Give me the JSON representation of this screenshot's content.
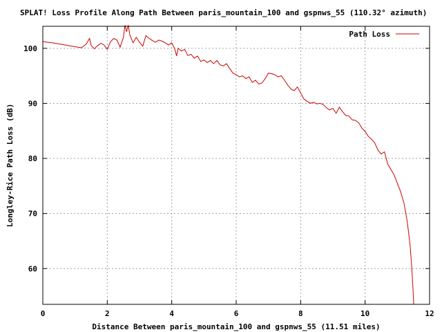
{
  "chart_data": {
    "type": "line",
    "title": "SPLAT! Loss Profile Along Path Between paris_mountain_100 and gspnws_55 (110.32° azimuth)",
    "xlabel": "Distance Between paris_mountain_100 and gspnws_55 (11.51 miles)",
    "ylabel": "Longley-Rice Path Loss (dB)",
    "xlim": [
      0,
      12
    ],
    "ylim": [
      53.5,
      104
    ],
    "xticks": [
      "0",
      "2",
      "4",
      "6",
      "8",
      "10",
      "12"
    ],
    "yticks": [
      "60",
      "70",
      "80",
      "90",
      "100"
    ],
    "xtick_values": [
      0,
      2,
      4,
      6,
      8,
      10,
      12
    ],
    "ytick_values": [
      60,
      70,
      80,
      90,
      100
    ],
    "grid": true,
    "legend_position": "top-right",
    "series": [
      {
        "name": "Path Loss",
        "color": "#cc0000",
        "x": [
          0,
          0.3,
          0.6,
          0.9,
          1.2,
          1.35,
          1.45,
          1.5,
          1.6,
          1.7,
          1.8,
          1.9,
          2.0,
          2.1,
          2.2,
          2.3,
          2.4,
          2.5,
          2.55,
          2.6,
          2.65,
          2.7,
          2.8,
          2.9,
          3.0,
          3.1,
          3.2,
          3.3,
          3.4,
          3.5,
          3.6,
          3.7,
          3.8,
          3.9,
          4.0,
          4.1,
          4.15,
          4.2,
          4.3,
          4.4,
          4.5,
          4.6,
          4.7,
          4.8,
          4.9,
          5.0,
          5.1,
          5.2,
          5.3,
          5.4,
          5.5,
          5.6,
          5.7,
          5.8,
          5.9,
          6.0,
          6.1,
          6.2,
          6.3,
          6.4,
          6.5,
          6.6,
          6.7,
          6.8,
          6.9,
          7.0,
          7.1,
          7.2,
          7.3,
          7.4,
          7.5,
          7.6,
          7.7,
          7.8,
          7.9,
          8.0,
          8.1,
          8.2,
          8.3,
          8.4,
          8.5,
          8.6,
          8.7,
          8.8,
          8.9,
          9.0,
          9.1,
          9.2,
          9.3,
          9.4,
          9.5,
          9.6,
          9.7,
          9.8,
          9.9,
          10.0,
          10.1,
          10.2,
          10.3,
          10.4,
          10.5,
          10.6,
          10.7,
          10.8,
          10.9,
          11.0,
          11.1,
          11.2,
          11.25,
          11.3,
          11.35,
          11.4,
          11.45,
          11.48,
          11.51
        ],
        "values": [
          101.2,
          101.0,
          100.7,
          100.4,
          100.1,
          100.8,
          101.8,
          100.5,
          99.9,
          100.5,
          100.9,
          100.6,
          99.8,
          101.2,
          101.8,
          101.5,
          100.2,
          102.0,
          104.2,
          103.0,
          104.2,
          102.4,
          101.0,
          102.0,
          101.1,
          100.4,
          102.3,
          101.8,
          101.4,
          101.1,
          101.5,
          101.3,
          101.0,
          100.6,
          101.0,
          99.8,
          98.6,
          100.0,
          99.5,
          99.8,
          98.7,
          98.9,
          98.2,
          98.6,
          97.6,
          97.9,
          97.4,
          97.8,
          97.2,
          97.8,
          97.0,
          96.8,
          97.2,
          96.3,
          95.5,
          95.2,
          94.8,
          95.0,
          94.5,
          94.8,
          93.8,
          94.2,
          93.5,
          93.7,
          94.5,
          95.5,
          95.4,
          95.2,
          94.8,
          95.0,
          94.2,
          93.3,
          92.6,
          92.3,
          93.0,
          91.9,
          90.8,
          90.4,
          90.0,
          90.2,
          89.9,
          90.0,
          89.8,
          89.2,
          88.8,
          89.1,
          88.2,
          89.3,
          88.5,
          87.8,
          87.7,
          87.0,
          86.9,
          86.5,
          85.5,
          84.9,
          84.0,
          83.5,
          82.8,
          81.5,
          80.8,
          81.2,
          79.0,
          78.0,
          77.0,
          75.5,
          74.0,
          72.0,
          70.5,
          68.8,
          66.5,
          64.0,
          60.0,
          57.0,
          53.5
        ]
      }
    ]
  }
}
